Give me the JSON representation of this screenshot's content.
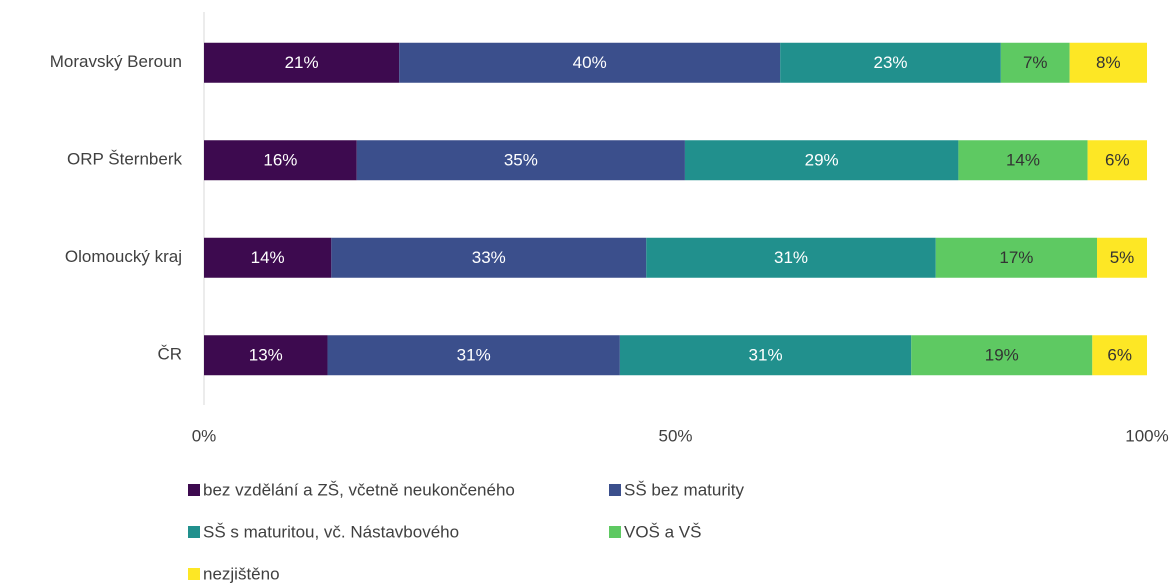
{
  "chart_data": {
    "type": "stacked_barh",
    "categories": [
      "Moravský Beroun",
      "ORP Šternberk",
      "Olomoucký kraj",
      "ČR"
    ],
    "series": [
      {
        "name": "bez vzdělání a ZŠ, včetně neukončeného",
        "color": "#3d0a4f",
        "label_color": "#ffffff",
        "values": [
          20.7,
          16.2,
          13.5,
          13.1
        ],
        "value_labels": [
          "21%",
          "16%",
          "14%",
          "13%"
        ]
      },
      {
        "name": "SŠ bez maturity",
        "color": "#3b4f8c",
        "label_color": "#ffffff",
        "values": [
          40.4,
          34.8,
          33.4,
          31.0
        ],
        "value_labels": [
          "40%",
          "35%",
          "33%",
          "31%"
        ]
      },
      {
        "name": "SŠ s maturitou, vč. Nástavbového",
        "color": "#21908d",
        "label_color": "#ffffff",
        "values": [
          23.4,
          29.0,
          30.7,
          30.9
        ],
        "value_labels": [
          "23%",
          "29%",
          "31%",
          "31%"
        ]
      },
      {
        "name": "VOŠ a VŠ",
        "color": "#5ec962",
        "label_color": "#333333",
        "values": [
          7.3,
          13.7,
          17.1,
          19.2
        ],
        "value_labels": [
          "7%",
          "14%",
          "17%",
          "19%"
        ]
      },
      {
        "name": "nezjištěno",
        "color": "#fde725",
        "label_color": "#333333",
        "values": [
          8.2,
          6.3,
          5.3,
          5.8
        ],
        "value_labels": [
          "8%",
          "6%",
          "5%",
          "6%"
        ]
      }
    ],
    "xlim": [
      0,
      100
    ],
    "xticks": [
      {
        "value": 0,
        "label": "0%"
      },
      {
        "value": 50,
        "label": "50%"
      },
      {
        "value": 100,
        "label": "100%"
      }
    ],
    "grid": false,
    "legend": "bottom"
  }
}
